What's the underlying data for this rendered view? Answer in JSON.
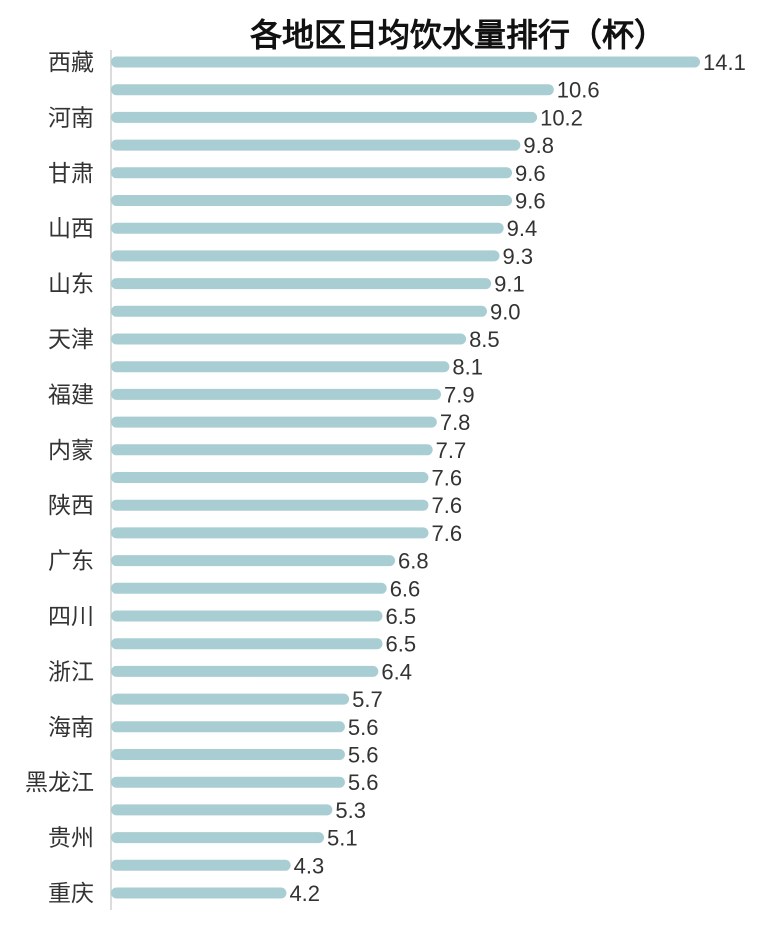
{
  "chart_data": {
    "type": "bar",
    "orientation": "horizontal",
    "title": "各地区日均饮水量排行（杯）",
    "categories": [
      "西藏",
      "",
      "河南",
      "",
      "甘肃",
      "",
      "山西",
      "",
      "山东",
      "",
      "天津",
      "",
      "福建",
      "",
      "内蒙",
      "",
      "陕西",
      "",
      "广东",
      "",
      "四川",
      "",
      "浙江",
      "",
      "海南",
      "",
      "黑龙江",
      "",
      "贵州",
      "",
      "重庆"
    ],
    "values": [
      "14.1",
      "10.6",
      "10.2",
      "9.8",
      "9.6",
      "9.6",
      "9.4",
      "9.3",
      "9.1",
      "9.0",
      "8.5",
      "8.1",
      "7.9",
      "7.8",
      "7.7",
      "7.6",
      "7.6",
      "7.6",
      "6.8",
      "6.6",
      "6.5",
      "6.5",
      "6.4",
      "5.7",
      "5.6",
      "5.6",
      "5.6",
      "5.3",
      "5.1",
      "4.3",
      "4.2"
    ],
    "xlim": [
      0,
      14.1
    ],
    "bar_color": "#a8cdd2",
    "grid": false,
    "legend": "none"
  }
}
